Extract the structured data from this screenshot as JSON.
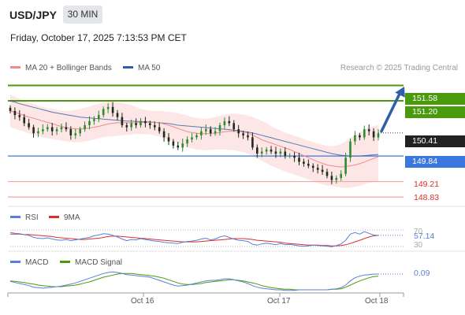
{
  "header": {
    "symbol": "USD/JPY",
    "timeframe": "30 MIN",
    "datetime": "Friday, October 17, 2025 7:13:53 PM CET"
  },
  "legend": {
    "ma20": "MA 20 + Bollinger Bands",
    "ma50": "MA 50",
    "copyright": "Research © 2025 Trading Central",
    "rsi": "RSI",
    "rsi_ma": "9MA",
    "macd": "MACD",
    "macd_signal": "MACD Signal"
  },
  "colors": {
    "resistance": "#4a9a0e",
    "support": "#3a78e0",
    "target_line": "#f4a5a5",
    "target_text": "#d9302a",
    "current_tag": "#222222",
    "arrow": "#2f5fa8",
    "ma20": "#f28a8a",
    "ma50": "#2f5fa8",
    "bollinger": "#fde2e2",
    "candle_up": "#2e8b2e",
    "candle_down": "#1f2a1f",
    "rsi": "#5b7fd6",
    "rsi_ma": "#d9302a",
    "macd": "#5b7fd6",
    "macd_signal": "#4a9a0e"
  },
  "levels": {
    "resistance_2": "151.58",
    "resistance_1": "151.20",
    "current": "150.41",
    "pivot": "149.84",
    "target_1": "149.21",
    "target_2": "148.83"
  },
  "rsi_panel": {
    "upper": "70",
    "lower": "30",
    "value": "57.14"
  },
  "macd_panel": {
    "value": "0.09"
  },
  "x_axis": {
    "ticks": [
      "Oct 16",
      "Oct 17",
      "Oct 18"
    ]
  },
  "chart_data": [
    {
      "type": "candlestick",
      "title": "USD/JPY",
      "timeframe": "30 MIN",
      "ylim": [
        148.6,
        151.9
      ],
      "levels": [
        151.58,
        151.2,
        150.41,
        149.84,
        149.21,
        148.83
      ],
      "x_ticks": [
        "Oct 16",
        "Oct 17",
        "Oct 18"
      ],
      "close": [
        150.95,
        150.85,
        150.8,
        150.65,
        150.55,
        150.4,
        150.45,
        150.5,
        150.55,
        150.45,
        150.5,
        150.55,
        150.5,
        150.35,
        150.4,
        150.5,
        150.6,
        150.7,
        150.75,
        150.85,
        151.0,
        151.05,
        150.9,
        150.8,
        150.6,
        150.55,
        150.65,
        150.6,
        150.7,
        150.65,
        150.6,
        150.55,
        150.45,
        150.3,
        150.2,
        150.1,
        150.05,
        150.15,
        150.25,
        150.3,
        150.35,
        150.45,
        150.5,
        150.4,
        150.45,
        150.6,
        150.7,
        150.65,
        150.5,
        150.4,
        150.35,
        150.3,
        150.05,
        149.9,
        149.95,
        150.0,
        149.95,
        149.9,
        149.95,
        149.85,
        149.85,
        149.8,
        149.7,
        149.65,
        149.6,
        149.55,
        149.5,
        149.45,
        149.35,
        149.25,
        149.3,
        149.4,
        149.8,
        150.2,
        150.35,
        150.3,
        150.5,
        150.45,
        150.3,
        150.4
      ],
      "ma20": [
        150.95,
        150.92,
        150.88,
        150.84,
        150.8,
        150.77,
        150.74,
        150.7,
        150.67,
        150.64,
        150.6,
        150.57,
        150.54,
        150.52,
        150.51,
        150.51,
        150.52,
        150.53,
        150.55,
        150.57,
        150.6,
        150.63,
        150.65,
        150.66,
        150.66,
        150.66,
        150.66,
        150.66,
        150.67,
        150.67,
        150.67,
        150.67,
        150.66,
        150.63,
        150.6,
        150.56,
        150.52,
        150.48,
        150.44,
        150.42,
        150.4,
        150.39,
        150.39,
        150.4,
        150.4,
        150.42,
        150.44,
        150.45,
        150.45,
        150.44,
        150.43,
        150.41,
        150.36,
        150.3,
        150.24,
        150.2,
        150.16,
        150.12,
        150.08,
        150.04,
        150.0,
        149.95,
        149.9,
        149.85,
        149.8,
        149.75,
        149.7,
        149.66,
        149.62,
        149.6,
        149.58,
        149.57,
        149.58,
        149.6,
        149.62,
        149.65,
        149.69,
        149.74,
        149.78,
        149.82
      ],
      "ma50": [
        151.2,
        151.17,
        151.13,
        151.1,
        151.07,
        151.04,
        151.01,
        150.98,
        150.95,
        150.92,
        150.9,
        150.88,
        150.86,
        150.84,
        150.82,
        150.8,
        150.79,
        150.78,
        150.77,
        150.76,
        150.75,
        150.74,
        150.73,
        150.72,
        150.71,
        150.7,
        150.7,
        150.69,
        150.69,
        150.68,
        150.68,
        150.67,
        150.66,
        150.65,
        150.64,
        150.62,
        150.6,
        150.59,
        150.58,
        150.57,
        150.56,
        150.55,
        150.54,
        150.53,
        150.52,
        150.51,
        150.5,
        150.49,
        150.48,
        150.47,
        150.45,
        150.43,
        150.41,
        150.38,
        150.35,
        150.32,
        150.29,
        150.26,
        150.23,
        150.2,
        150.17,
        150.14,
        150.11,
        150.08,
        150.05,
        150.02,
        149.99,
        149.96,
        149.93,
        149.9,
        149.88,
        149.86,
        149.85,
        149.84,
        149.84,
        149.84,
        149.85,
        149.86,
        149.87,
        149.88
      ],
      "bollinger_upper": [
        151.35,
        151.3,
        151.25,
        151.2,
        151.15,
        151.12,
        151.08,
        151.05,
        151.02,
        151.0,
        150.98,
        150.96,
        150.95,
        150.96,
        150.98,
        151.0,
        151.03,
        151.06,
        151.1,
        151.13,
        151.16,
        151.18,
        151.18,
        151.17,
        151.15,
        151.12,
        151.1,
        151.05,
        151.0,
        150.98,
        150.96,
        150.95,
        150.95,
        150.94,
        150.93,
        150.92,
        150.9,
        150.87,
        150.84,
        150.8,
        150.78,
        150.76,
        150.76,
        150.78,
        150.8,
        150.83,
        150.86,
        150.88,
        150.89,
        150.88,
        150.86,
        150.84,
        150.8,
        150.76,
        150.7,
        150.65,
        150.58,
        150.52,
        150.47,
        150.42,
        150.38,
        150.34,
        150.3,
        150.26,
        150.22,
        150.18,
        150.15,
        150.12,
        150.1,
        150.08,
        150.1,
        150.14,
        150.2,
        150.28,
        150.36,
        150.42,
        150.5,
        150.55,
        150.58,
        150.6
      ],
      "bollinger_lower": [
        150.55,
        150.52,
        150.48,
        150.44,
        150.4,
        150.37,
        150.33,
        150.3,
        150.28,
        150.26,
        150.24,
        150.22,
        150.2,
        150.19,
        150.18,
        150.18,
        150.2,
        150.22,
        150.25,
        150.28,
        150.3,
        150.32,
        150.33,
        150.34,
        150.35,
        150.36,
        150.37,
        150.38,
        150.38,
        150.38,
        150.37,
        150.35,
        150.32,
        150.28,
        150.24,
        150.2,
        150.15,
        150.1,
        150.06,
        150.02,
        150.0,
        149.99,
        149.98,
        149.99,
        150.0,
        150.0,
        150.0,
        149.99,
        149.98,
        149.96,
        149.94,
        149.9,
        149.85,
        149.78,
        149.72,
        149.66,
        149.6,
        149.55,
        149.5,
        149.46,
        149.42,
        149.38,
        149.34,
        149.3,
        149.26,
        149.22,
        149.18,
        149.14,
        149.12,
        149.1,
        149.08,
        149.06,
        149.05,
        149.06,
        149.08,
        149.1,
        149.14,
        149.18,
        149.2,
        149.22
      ]
    },
    {
      "type": "line",
      "title": "RSI",
      "ylim": [
        20,
        80
      ],
      "series": [
        {
          "name": "RSI",
          "values": [
            64,
            62,
            61,
            59,
            57,
            52,
            50,
            49,
            51,
            48,
            46,
            45,
            47,
            44,
            46,
            48,
            50,
            52,
            56,
            58,
            61,
            60,
            57,
            53,
            48,
            44,
            47,
            46,
            49,
            47,
            45,
            43,
            42,
            40,
            39,
            38,
            37,
            40,
            42,
            43,
            45,
            48,
            50,
            46,
            48,
            53,
            56,
            52,
            48,
            45,
            44,
            42,
            35,
            33,
            36,
            38,
            36,
            34,
            37,
            34,
            35,
            33,
            31,
            30,
            31,
            33,
            32,
            31,
            30,
            29,
            32,
            36,
            45,
            60,
            64,
            60,
            66,
            62,
            58,
            57
          ]
        },
        {
          "name": "9MA",
          "values": [
            60,
            60,
            60,
            59,
            59,
            58,
            57,
            56,
            55,
            54,
            52,
            51,
            50,
            49,
            48,
            47,
            47,
            48,
            49,
            50,
            52,
            54,
            55,
            55,
            54,
            53,
            52,
            51,
            50,
            49,
            48,
            47,
            46,
            45,
            44,
            43,
            42,
            41,
            41,
            41,
            41,
            42,
            43,
            44,
            45,
            46,
            47,
            48,
            49,
            49,
            49,
            48,
            47,
            45,
            44,
            43,
            42,
            41,
            40,
            38,
            37,
            36,
            35,
            34,
            33,
            33,
            33,
            32,
            32,
            31,
            31,
            32,
            34,
            37,
            41,
            45,
            49,
            53,
            56,
            57
          ]
        }
      ]
    },
    {
      "type": "line",
      "title": "MACD",
      "series": [
        {
          "name": "MACD",
          "values": [
            -0.05,
            -0.07,
            -0.09,
            -0.11,
            -0.13,
            -0.16,
            -0.17,
            -0.18,
            -0.17,
            -0.16,
            -0.15,
            -0.14,
            -0.12,
            -0.1,
            -0.08,
            -0.05,
            -0.02,
            0.01,
            0.04,
            0.07,
            0.1,
            0.12,
            0.13,
            0.12,
            0.1,
            0.08,
            0.07,
            0.06,
            0.05,
            0.04,
            0.03,
            0.0,
            -0.03,
            -0.06,
            -0.09,
            -0.12,
            -0.14,
            -0.13,
            -0.12,
            -0.1,
            -0.08,
            -0.06,
            -0.04,
            -0.03,
            -0.03,
            -0.02,
            0.0,
            0.0,
            -0.02,
            -0.04,
            -0.06,
            -0.09,
            -0.13,
            -0.16,
            -0.18,
            -0.19,
            -0.2,
            -0.21,
            -0.21,
            -0.22,
            -0.22,
            -0.22,
            -0.21,
            -0.21,
            -0.21,
            -0.21,
            -0.21,
            -0.21,
            -0.21,
            -0.2,
            -0.19,
            -0.17,
            -0.12,
            -0.04,
            0.02,
            0.05,
            0.07,
            0.08,
            0.09,
            0.09
          ]
        },
        {
          "name": "MACD Signal",
          "values": [
            -0.04,
            -0.05,
            -0.06,
            -0.07,
            -0.09,
            -0.1,
            -0.12,
            -0.13,
            -0.14,
            -0.15,
            -0.15,
            -0.15,
            -0.14,
            -0.13,
            -0.12,
            -0.1,
            -0.08,
            -0.06,
            -0.03,
            0.0,
            0.03,
            0.05,
            0.07,
            0.09,
            0.1,
            0.1,
            0.1,
            0.09,
            0.08,
            0.07,
            0.06,
            0.05,
            0.03,
            0.01,
            -0.02,
            -0.05,
            -0.08,
            -0.1,
            -0.11,
            -0.11,
            -0.1,
            -0.09,
            -0.07,
            -0.06,
            -0.05,
            -0.04,
            -0.03,
            -0.02,
            -0.02,
            -0.03,
            -0.04,
            -0.06,
            -0.08,
            -0.1,
            -0.13,
            -0.15,
            -0.17,
            -0.18,
            -0.19,
            -0.2,
            -0.2,
            -0.21,
            -0.21,
            -0.21,
            -0.21,
            -0.21,
            -0.21,
            -0.21,
            -0.21,
            -0.2,
            -0.2,
            -0.19,
            -0.16,
            -0.12,
            -0.08,
            -0.04,
            -0.01,
            0.02,
            0.04,
            0.05
          ]
        }
      ]
    }
  ]
}
